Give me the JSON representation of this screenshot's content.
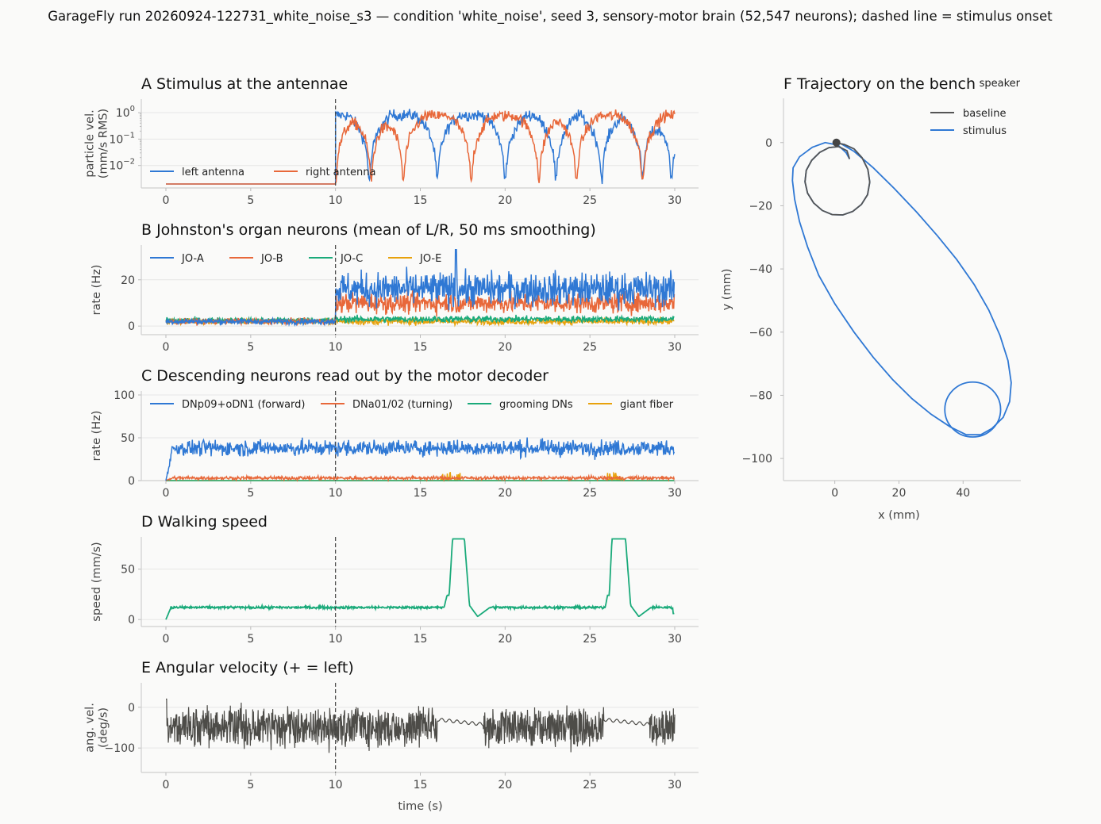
{
  "figure": {
    "suptitle": "GarageFly run 20260924-122731_white_noise_s3 — condition 'white_noise', seed 3, sensory-motor brain (52,547 neurons); dashed line = stimulus onset",
    "colors": {
      "blue": "#2f78d4",
      "orange": "#e8683a",
      "green": "#1aaa7a",
      "gold": "#e8a20c",
      "gray": "#4d4c48",
      "dark": "#555555",
      "background": "#fafaf9"
    }
  },
  "chart_data": [
    {
      "id": "A",
      "type": "line",
      "title": "A  Stimulus at the antennae",
      "ylabel": [
        "particle vel.",
        "(mm/s RMS)"
      ],
      "xlabel": "",
      "x_range": [
        0,
        30
      ],
      "yscale": "log",
      "ylim": [
        0.002,
        2
      ],
      "xticks": [
        "0",
        "5",
        "10",
        "15",
        "20",
        "25",
        "30"
      ],
      "yticks": [
        {
          "base": "10",
          "exp": "0"
        },
        {
          "base": "10",
          "exp": "−1"
        },
        {
          "base": "10",
          "exp": "−2"
        }
      ],
      "onset_x": 10,
      "legend": "lower-left",
      "series": [
        {
          "name": "left antenna",
          "color": "#2f78d4",
          "pre_value": 0.002,
          "post_level": 0.8,
          "notch_times": [
            12,
            16,
            20,
            23,
            25.7,
            28.1,
            29.8
          ]
        },
        {
          "name": "right antenna",
          "color": "#e8683a",
          "pre_value": 0.002,
          "post_level": 0.75,
          "notch_times": [
            10,
            12.1,
            14,
            18,
            22,
            24.2,
            28.1
          ]
        }
      ]
    },
    {
      "id": "B",
      "type": "line",
      "title": "B  Johnston's organ neurons (mean of L/R, 50 ms smoothing)",
      "ylabel": [
        "rate (Hz)"
      ],
      "xlabel": "",
      "x_range": [
        0,
        30
      ],
      "ylim": [
        -2,
        35
      ],
      "xticks": [
        "0",
        "5",
        "10",
        "15",
        "20",
        "25",
        "30"
      ],
      "yticks": [
        "0",
        "20"
      ],
      "onset_x": 10,
      "legend": "top-left",
      "series": [
        {
          "name": "JO-A",
          "color": "#2f78d4",
          "baseline": 2,
          "stim_mean": 16,
          "peak": 33
        },
        {
          "name": "JO-B",
          "color": "#e8683a",
          "baseline": 2,
          "stim_mean": 10
        },
        {
          "name": "JO-C",
          "color": "#1aaa7a",
          "baseline": 2.5,
          "stim_mean": 3
        },
        {
          "name": "JO-E",
          "color": "#e8a20c",
          "baseline": 2,
          "stim_mean": 2
        }
      ]
    },
    {
      "id": "C",
      "type": "line",
      "title": "C  Descending neurons read out by the motor decoder",
      "ylabel": [
        "rate (Hz)"
      ],
      "xlabel": "",
      "x_range": [
        0,
        30
      ],
      "ylim": [
        0,
        100
      ],
      "xticks": [
        "0",
        "5",
        "10",
        "15",
        "20",
        "25",
        "30"
      ],
      "yticks": [
        "0",
        "50",
        "100"
      ],
      "onset_x": 10,
      "legend": "top",
      "series": [
        {
          "name": "DNp09+oDN1 (forward)",
          "color": "#2f78d4",
          "mean": 38
        },
        {
          "name": "DNa01/02 (turning)",
          "color": "#e8683a",
          "mean": 3
        },
        {
          "name": "grooming DNs",
          "color": "#1aaa7a",
          "mean": 0
        },
        {
          "name": "giant fiber",
          "color": "#e8a20c",
          "mean": 0,
          "bursts": [
            [
              16,
              17.5
            ],
            [
              26,
              27
            ]
          ]
        }
      ]
    },
    {
      "id": "D",
      "type": "line",
      "title": "D  Walking speed",
      "ylabel": [
        "speed (mm/s)"
      ],
      "xlabel": "",
      "x_range": [
        0,
        30
      ],
      "ylim": [
        -3,
        82
      ],
      "xticks": [
        "0",
        "5",
        "10",
        "15",
        "20",
        "25",
        "30"
      ],
      "yticks": [
        "0",
        "50"
      ],
      "onset_x": 10,
      "series": [
        {
          "name": "",
          "color": "#1aaa7a",
          "baseline": 12,
          "escape_bursts": [
            {
              "start": 16.4,
              "peak_start": 16.9,
              "peak_end": 17.6,
              "end": 17.9,
              "peak": 80
            },
            {
              "start": 25.9,
              "peak_start": 26.3,
              "peak_end": 27.1,
              "end": 27.4,
              "peak": 80
            }
          ]
        }
      ]
    },
    {
      "id": "E",
      "type": "line",
      "title": "E  Angular velocity (+ = left)",
      "ylabel": [
        "ang. vel.",
        "(deg/s)"
      ],
      "xlabel": "time (s)",
      "x_range": [
        0,
        30
      ],
      "ylim": [
        -160,
        60
      ],
      "xticks": [
        "0",
        "5",
        "10",
        "15",
        "20",
        "25",
        "30"
      ],
      "yticks": [
        "0",
        "−100"
      ],
      "onset_x": 10,
      "series": [
        {
          "name": "",
          "color": "#4d4c48",
          "mean": -50,
          "amplitude": 50,
          "quiet_segments": [
            [
              16,
              18.7
            ],
            [
              25.8,
              28.5
            ]
          ]
        }
      ]
    },
    {
      "id": "F",
      "type": "line",
      "title": "F  Trajectory on the bench",
      "xlabel": "x (mm)",
      "ylabel": [
        "y (mm)"
      ],
      "xlim": [
        -16,
        58
      ],
      "ylim": [
        -107,
        14
      ],
      "xticks": [
        "0",
        "20",
        "40"
      ],
      "yticks": [
        "0",
        "−20",
        "−40",
        "−60",
        "−80",
        "−100"
      ],
      "annotation": "speaker",
      "marker": {
        "x": 0.5,
        "y": 0
      },
      "legend": "top-right",
      "series": [
        {
          "name": "baseline",
          "color": "#555555",
          "points": [
            [
              0,
              0
            ],
            [
              3,
              -0.6
            ],
            [
              6,
              -2
            ],
            [
              8.5,
              -4.8
            ],
            [
              10.3,
              -8.5
            ],
            [
              10.9,
              -12.5
            ],
            [
              10.2,
              -16.5
            ],
            [
              8.3,
              -19.6
            ],
            [
              5.6,
              -21.8
            ],
            [
              2.5,
              -22.9
            ],
            [
              -0.8,
              -22.8
            ],
            [
              -3.9,
              -21.5
            ],
            [
              -6.6,
              -19.1
            ],
            [
              -8.5,
              -16
            ],
            [
              -9.3,
              -12.4
            ],
            [
              -8.9,
              -8.8
            ],
            [
              -7.2,
              -5.6
            ],
            [
              -4.7,
              -3.1
            ],
            [
              -1.8,
              -1.6
            ],
            [
              1.2,
              -1.3
            ],
            [
              3.8,
              -2.6
            ],
            [
              4.6,
              -5.2
            ]
          ]
        },
        {
          "name": "stimulus",
          "color": "#2f78d4",
          "points": [
            [
              0,
              0
            ],
            [
              3,
              -0.6
            ],
            [
              6,
              -2
            ],
            [
              8.5,
              -4.8
            ],
            [
              10.3,
              -8.5
            ],
            [
              10.9,
              -12.5
            ],
            [
              10.2,
              -16.5
            ],
            [
              8.3,
              -19.6
            ],
            [
              5.6,
              -21.8
            ],
            [
              2.5,
              -22.9
            ],
            [
              -0.8,
              -22.8
            ],
            [
              -3.9,
              -21.5
            ],
            [
              -6.6,
              -19.1
            ],
            [
              -8.5,
              -16
            ],
            [
              -9.3,
              -12.4
            ],
            [
              -8.9,
              -8.8
            ],
            [
              -7.2,
              -5.6
            ],
            [
              -4.7,
              -3.1
            ],
            [
              -1.8,
              -1.6
            ],
            [
              1.2,
              -1.3
            ],
            [
              3.8,
              -2.6
            ],
            [
              4.6,
              -5.2
            ],
            [
              3.5,
              -3.2
            ],
            [
              1,
              -0.8
            ],
            [
              -3,
              0
            ],
            [
              -7,
              -1.5
            ],
            [
              -11,
              -4.5
            ],
            [
              -13,
              -8
            ],
            [
              -13.2,
              -12
            ],
            [
              -12.5,
              -18
            ],
            [
              -11,
              -25
            ],
            [
              -8.5,
              -33
            ],
            [
              -5,
              -42
            ],
            [
              0,
              -51
            ],
            [
              6,
              -60
            ],
            [
              12,
              -68
            ],
            [
              18,
              -75
            ],
            [
              24,
              -81
            ],
            [
              30,
              -86
            ],
            [
              36,
              -90
            ],
            [
              41,
              -92.5
            ],
            [
              45.5,
              -92.5
            ],
            [
              49,
              -90.5
            ],
            [
              52.5,
              -87
            ],
            [
              54.5,
              -82
            ],
            [
              55,
              -76
            ],
            [
              54,
              -69
            ],
            [
              51.5,
              -61
            ],
            [
              48,
              -53
            ],
            [
              43.5,
              -45
            ],
            [
              38,
              -37
            ],
            [
              32,
              -29.5
            ],
            [
              25.5,
              -22
            ],
            [
              18.5,
              -14.5
            ],
            [
              12,
              -8
            ],
            [
              6,
              -2.8
            ],
            [
              2,
              -0.4
            ],
            [
              0,
              0
            ]
          ]
        },
        {
          "name": "stimulus-loop",
          "color": "#2f78d4",
          "circle": {
            "cx": 43,
            "cy": -84.5,
            "r": 8.7
          }
        }
      ]
    }
  ]
}
